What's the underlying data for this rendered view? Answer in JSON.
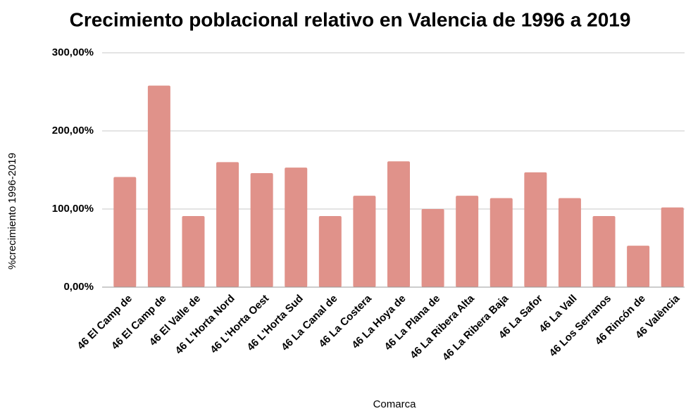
{
  "chart_data": {
    "type": "bar",
    "title": "Crecimiento poblacional relativo en Valencia de 1996 a 2019",
    "x_label": "Comarca",
    "y_label": "%crecimiento 1996-2019",
    "categories": [
      "46 El Camp de",
      "46 El Camp de",
      "46 El Valle de",
      "46 L'Horta Nord",
      "46 L'Horta Oest",
      "46 L'Horta Sud",
      "46 La Canal de",
      "46 La Costera",
      "46 La Hoya de",
      "46 La Plana de",
      "46 La Ribera Alta",
      "46 La Ribera Baja",
      "46 La Safor",
      "46 La Vall",
      "46 Los Serranos",
      "46 Rincón de",
      "46 València"
    ],
    "values": [
      141,
      258,
      91,
      160,
      146,
      153,
      91,
      117,
      161,
      100,
      117,
      114,
      147,
      114,
      91,
      53,
      102
    ],
    "color": "#e0928a",
    "ylim": [
      0,
      300
    ],
    "yticks": [
      {
        "value": 0,
        "label": "0,00%"
      },
      {
        "value": 100,
        "label": "100,00%"
      },
      {
        "value": 200,
        "label": "200,00%"
      },
      {
        "value": 300,
        "label": "300,00%"
      }
    ],
    "grid": true
  }
}
